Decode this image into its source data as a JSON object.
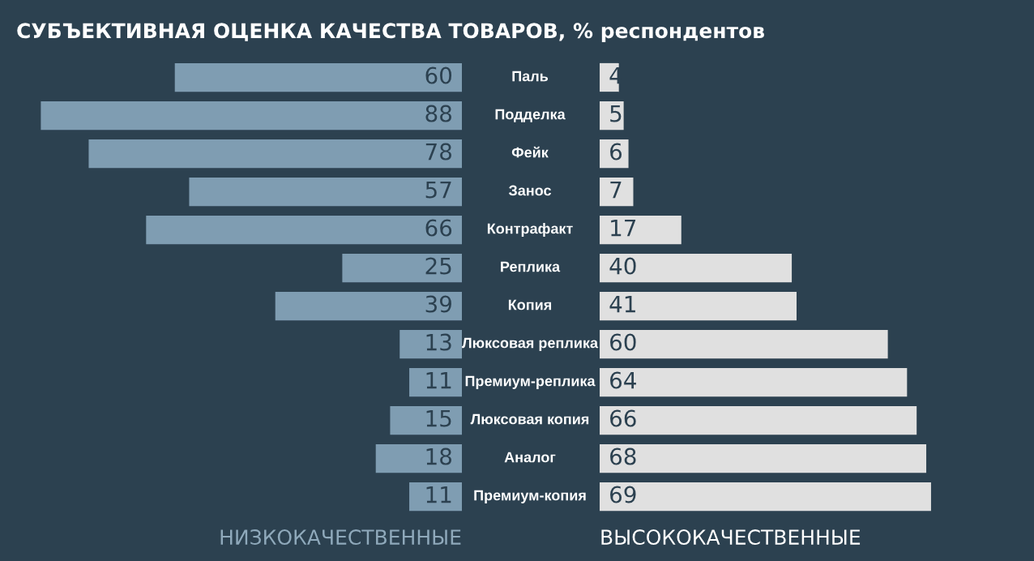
{
  "chart_data": [
    {
      "type": "bar",
      "orientation": "horizontal",
      "title": "СУБЪЕКТИВНАЯ ОЦЕНКА КАЧЕСТВА ТОВАРОВ, % респондентов",
      "xlabel": "НИЗКОКАЧЕСТВЕННЫЕ",
      "categories": [
        "Паль",
        "Подделка",
        "Фейк",
        "Занос",
        "Контрафакт",
        "Реплика",
        "Копия",
        "Люксовая реплика",
        "Премиум-реплика",
        "Люксовая копия",
        "Аналог",
        "Премиум-копия"
      ],
      "values": [
        60,
        88,
        78,
        57,
        66,
        25,
        39,
        13,
        11,
        15,
        18,
        11
      ],
      "color": "#7f9db2",
      "data_labels": true,
      "tick_labels": "y"
    },
    {
      "type": "bar",
      "orientation": "horizontal",
      "xlabel": "ВЫСОКОКАЧЕСТВЕННЫЕ",
      "values": [
        4,
        5,
        6,
        7,
        17,
        40,
        41,
        60,
        64,
        66,
        68,
        69
      ],
      "color": "#e0e0e0",
      "data_labels": true,
      "tick_labels": false
    }
  ]
}
